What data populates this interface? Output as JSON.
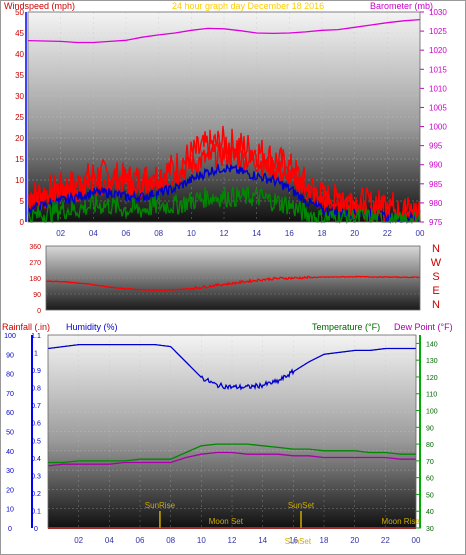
{
  "colors": {
    "wind": "#ff0000",
    "gust": "#ff0000",
    "avg": "#0000cc",
    "low": "#008800",
    "baro": "#dd00dd",
    "title": "#ffcc00",
    "rain": "#cc0000",
    "humidity": "#0000cc",
    "temperature": "#008800",
    "dewpoint": "#aa00aa",
    "astro": "#ccaa00",
    "frame_left": "#0000ff",
    "frame_right_top": "#cc00cc",
    "frame_right_bottom": "#00aa00"
  },
  "chart_data": [
    {
      "type": "line",
      "title": "24 hour graph day   December 18 2016",
      "ylabel_left": "Windspeed (mph)",
      "ylabel_right": "Barometer (mb)",
      "x_ticks": [
        "02",
        "04",
        "06",
        "08",
        "10",
        "12",
        "14",
        "16",
        "18",
        "20",
        "22",
        "00"
      ],
      "ylim_left": [
        0,
        50
      ],
      "y_ticks_left": [
        "0",
        "5",
        "10",
        "15",
        "20",
        "25",
        "30",
        "35",
        "40",
        "45",
        "50"
      ],
      "ylim_right": [
        975,
        1030
      ],
      "y_ticks_right": [
        "975",
        "980",
        "985",
        "990",
        "995",
        "1000",
        "1005",
        "1010",
        "1015",
        "1020",
        "1025",
        "1030"
      ],
      "hours": [
        0,
        1,
        2,
        3,
        4,
        5,
        6,
        7,
        8,
        9,
        10,
        11,
        12,
        13,
        14,
        15,
        16,
        17,
        18,
        19,
        20,
        21,
        22,
        23,
        24
      ],
      "series": [
        {
          "name": "Windspeed",
          "axis": "left",
          "values": [
            6,
            7,
            8,
            9,
            11,
            11,
            10,
            10,
            11,
            13,
            16,
            18,
            19,
            18,
            17,
            15,
            13,
            9,
            6,
            5,
            5,
            4,
            4,
            3,
            2
          ]
        },
        {
          "name": "Windspeed average",
          "axis": "left",
          "values": [
            3,
            4,
            5,
            6,
            7,
            7,
            6,
            6,
            7,
            8,
            10,
            12,
            13,
            12,
            11,
            10,
            8,
            5,
            3,
            2,
            2,
            2,
            1,
            1,
            1
          ]
        },
        {
          "name": "Windspeed low",
          "axis": "left",
          "values": [
            1,
            2,
            3,
            3,
            4,
            4,
            3,
            3,
            4,
            4,
            5,
            6,
            6,
            6,
            6,
            5,
            4,
            2,
            1,
            1,
            1,
            1,
            0,
            0,
            0
          ]
        },
        {
          "name": "Barometer",
          "axis": "right",
          "values": [
            1022.5,
            1022.4,
            1022.3,
            1022.0,
            1022.0,
            1022.3,
            1022.6,
            1023.4,
            1024.0,
            1024.5,
            1025.2,
            1025.7,
            1025.6,
            1025.1,
            1024.5,
            1024.4,
            1024.5,
            1024.8,
            1025.2,
            1025.4,
            1026.0,
            1026.6,
            1027.2,
            1027.7,
            1028.0
          ]
        }
      ]
    },
    {
      "type": "line",
      "ylabel_left": "",
      "right_labels": [
        "N",
        "W",
        "S",
        "E",
        "N"
      ],
      "ylim": [
        0,
        360
      ],
      "y_ticks": [
        "0",
        "90",
        "180",
        "270",
        "360"
      ],
      "hours": [
        0,
        1,
        2,
        3,
        4,
        5,
        6,
        7,
        8,
        9,
        10,
        11,
        12,
        13,
        14,
        15,
        16,
        17,
        18,
        19,
        20,
        21,
        22,
        23,
        24
      ],
      "series": [
        {
          "name": "Wind direction",
          "values": [
            162,
            160,
            152,
            143,
            130,
            120,
            115,
            112,
            112,
            118,
            128,
            140,
            150,
            162,
            172,
            178,
            180,
            183,
            185,
            186,
            187,
            186,
            185,
            184,
            184
          ]
        }
      ]
    },
    {
      "type": "line",
      "ylabel_left": "Rainfall (.in)",
      "ylabel_left2": "Humidity (%)",
      "ylabel_right": "Temperature (°F)",
      "ylabel_right2": "Dew Point (°F)",
      "x_ticks": [
        "02",
        "04",
        "06",
        "08",
        "10",
        "12",
        "14",
        "16",
        "18",
        "20",
        "22",
        "00"
      ],
      "ylim_humidity": [
        0,
        100
      ],
      "y_ticks_humidity": [
        "0",
        "10",
        "20",
        "30",
        "40",
        "50",
        "60",
        "70",
        "80",
        "90",
        "100"
      ],
      "ylim_rain": [
        0,
        1.1
      ],
      "y_ticks_rain": [
        "0",
        "0.1",
        "0.2",
        "0.3",
        "0.4",
        "0.5",
        "0.6",
        "0.7",
        "0.8",
        "0.9",
        "1",
        "1.1"
      ],
      "ylim_temp": [
        30,
        145
      ],
      "y_ticks_temp": [
        "30",
        "40",
        "50",
        "60",
        "70",
        "80",
        "90",
        "100",
        "110",
        "120",
        "130",
        "140"
      ],
      "hours": [
        0,
        1,
        2,
        3,
        4,
        5,
        6,
        7,
        8,
        9,
        10,
        11,
        12,
        13,
        14,
        15,
        16,
        17,
        18,
        19,
        20,
        21,
        22,
        23,
        24
      ],
      "series": [
        {
          "name": "Humidity",
          "axis": "humidity",
          "values": [
            93,
            94,
            95,
            95,
            95,
            95,
            95,
            95,
            94,
            86,
            78,
            74,
            73,
            73,
            74,
            76,
            81,
            86,
            90,
            91,
            92,
            92,
            93,
            93,
            93
          ]
        },
        {
          "name": "Temperature",
          "axis": "temp",
          "values": [
            69,
            69,
            70,
            70,
            70,
            70,
            71,
            71,
            71,
            75,
            79,
            80,
            80,
            80,
            79,
            78,
            77,
            77,
            76,
            76,
            76,
            75,
            75,
            74,
            74
          ]
        },
        {
          "name": "Dew Point",
          "axis": "temp",
          "values": [
            67,
            68,
            68,
            68,
            68,
            69,
            69,
            69,
            69,
            72,
            74,
            75,
            75,
            74,
            74,
            74,
            73,
            73,
            72,
            72,
            72,
            72,
            72,
            71,
            71
          ]
        },
        {
          "name": "Rainfall",
          "axis": "rain",
          "values": [
            0,
            0,
            0,
            0,
            0,
            0,
            0,
            0,
            0,
            0,
            0,
            0,
            0,
            0,
            0,
            0,
            0,
            0,
            0,
            0,
            0,
            0,
            0,
            0,
            0
          ]
        }
      ],
      "annotations": [
        {
          "label": "SunRise",
          "hour": 7.3
        },
        {
          "label": "Moon Set",
          "hour": 11.6
        },
        {
          "label": "SunSet",
          "hour": 16.5
        },
        {
          "label": "SunSet",
          "hour": 16.3
        },
        {
          "label": "Moon Rise",
          "hour": 23.0
        }
      ]
    }
  ]
}
